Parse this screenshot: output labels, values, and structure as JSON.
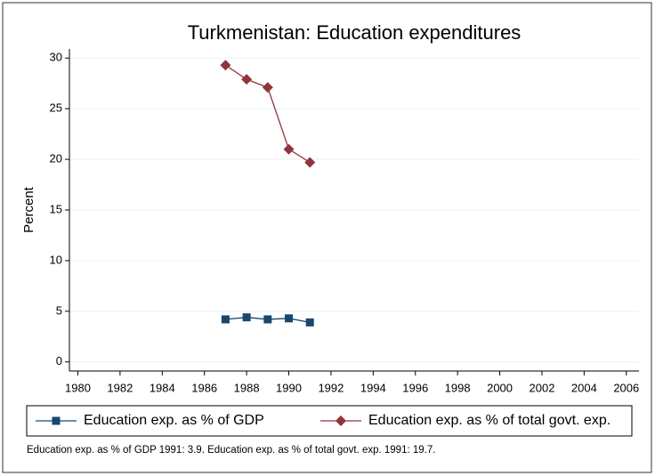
{
  "chart_data": {
    "type": "line",
    "title": "Turkmenistan: Education expenditures",
    "ylabel": "Percent",
    "note": "Education exp. as % of GDP 1991: 3.9. Education exp. as % of total govt. exp. 1991: 19.7.",
    "x": [
      1987,
      1988,
      1989,
      1990,
      1991
    ],
    "series": [
      {
        "name": "Education exp. as % of GDP",
        "color": "#1a476f",
        "marker": "square",
        "values": [
          4.2,
          4.4,
          4.2,
          4.3,
          3.9
        ]
      },
      {
        "name": "Education exp. as % of total govt. exp.",
        "color": "#90353b",
        "marker": "diamond",
        "values": [
          29.3,
          27.9,
          27.1,
          21.0,
          19.7
        ]
      }
    ],
    "xlim": [
      1979.6,
      2006.6
    ],
    "xticks": [
      1980,
      1982,
      1984,
      1986,
      1988,
      1990,
      1992,
      1994,
      1996,
      1998,
      2000,
      2002,
      2004,
      2006
    ],
    "ylim": [
      -0.9,
      30.9
    ],
    "yticks": [
      0,
      5,
      10,
      15,
      20,
      25,
      30
    ],
    "grid": true
  }
}
